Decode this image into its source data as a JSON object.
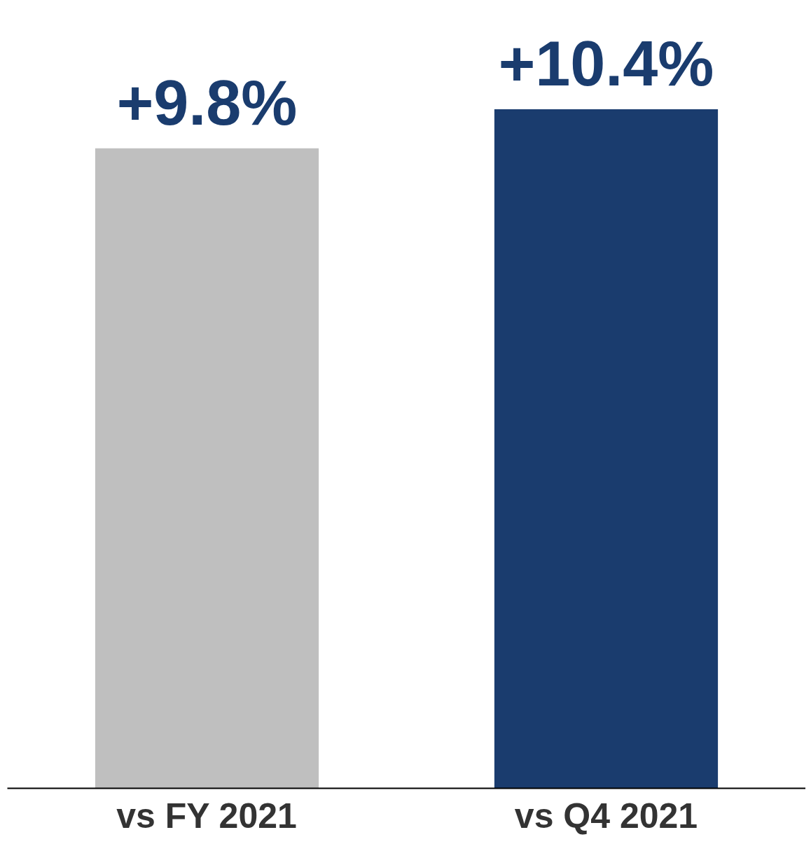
{
  "chart_data": {
    "type": "bar",
    "categories": [
      "vs FY 2021",
      "vs Q4 2021"
    ],
    "values": [
      9.8,
      10.4
    ],
    "colors": [
      "#bfbfbf",
      "#1a3c6e"
    ],
    "value_labels": [
      "+9.8%",
      "+10.4%"
    ],
    "grid": false
  }
}
